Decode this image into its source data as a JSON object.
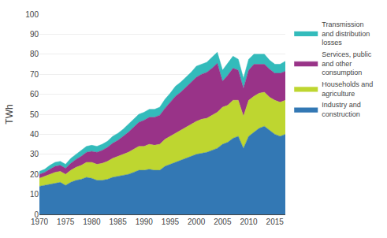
{
  "chart_data": {
    "type": "area",
    "stacked": true,
    "x": [
      1970,
      1971,
      1972,
      1973,
      1974,
      1975,
      1976,
      1977,
      1978,
      1979,
      1980,
      1981,
      1982,
      1983,
      1984,
      1985,
      1986,
      1987,
      1988,
      1989,
      1990,
      1991,
      1992,
      1993,
      1994,
      1995,
      1996,
      1997,
      1998,
      1999,
      2000,
      2001,
      2002,
      2003,
      2004,
      2005,
      2006,
      2007,
      2008,
      2009,
      2010,
      2011,
      2012,
      2013,
      2014,
      2015,
      2016,
      2017
    ],
    "series": [
      {
        "name": "Industry and\nconstruction",
        "color": "#3378b4",
        "values": [
          14,
          14.5,
          15,
          15.5,
          16,
          14.5,
          16,
          17,
          17.5,
          18.5,
          18,
          17,
          17,
          17.5,
          18.5,
          19,
          19.5,
          20,
          21,
          22,
          22,
          22.5,
          22,
          22,
          24,
          25,
          26,
          27,
          28,
          29,
          30,
          30.5,
          31,
          32,
          33,
          35,
          36,
          38,
          39,
          33,
          39,
          41,
          43,
          44,
          42,
          40,
          39,
          40
        ]
      },
      {
        "name": "Households and\nagriculture",
        "color": "#bed630",
        "values": [
          4,
          4.5,
          5,
          5.5,
          5.5,
          5.5,
          6,
          6.5,
          7,
          7.5,
          8,
          8,
          8.5,
          9,
          9.5,
          10,
          10.5,
          11,
          11.5,
          12,
          12,
          12.5,
          12.5,
          13,
          13.5,
          14,
          14.5,
          15,
          15.5,
          16,
          16.5,
          17,
          17,
          17.5,
          18,
          18.5,
          18.5,
          19,
          18,
          16,
          18,
          18,
          17.5,
          17,
          16.5,
          17,
          17,
          17
        ]
      },
      {
        "name": "Services, public\nand other\nconsumption",
        "color": "#993388",
        "values": [
          2,
          2,
          2.5,
          3,
          3,
          3,
          3.5,
          4,
          4.5,
          5,
          5.5,
          6,
          6.5,
          7,
          7.5,
          8,
          9,
          10,
          11,
          12,
          13,
          13.5,
          14,
          14.5,
          15.5,
          17,
          18.5,
          19,
          20,
          21,
          22,
          22.5,
          23,
          23.5,
          24.5,
          13,
          15,
          16,
          15,
          14,
          15,
          16,
          14.5,
          14,
          14,
          13.5,
          14.5,
          14.5
        ]
      },
      {
        "name": "Transmission\nand distribution\nlosses",
        "color": "#33bbbb",
        "values": [
          1.5,
          1.5,
          2,
          2,
          2,
          2,
          2.5,
          2.5,
          3,
          3,
          3,
          3,
          3,
          3,
          3.5,
          3.5,
          3.5,
          4,
          4,
          4,
          4,
          4,
          4,
          4,
          4.5,
          4.5,
          5,
          5,
          5,
          5,
          5.5,
          5,
          5,
          5.5,
          5.5,
          5.5,
          6,
          6,
          5.5,
          5,
          5.5,
          5,
          5,
          5,
          4.5,
          4.5,
          4.5,
          5
        ]
      }
    ],
    "ylabel": "TWh",
    "xlim": [
      1970,
      2017
    ],
    "ylim": [
      0,
      100
    ],
    "xticks": [
      1970,
      1975,
      1980,
      1985,
      1990,
      1995,
      2000,
      2005,
      2010,
      2015
    ],
    "yticks": [
      0,
      10,
      20,
      30,
      40,
      50,
      60,
      70,
      80,
      90,
      100
    ],
    "grid": "y",
    "legend": "right"
  }
}
